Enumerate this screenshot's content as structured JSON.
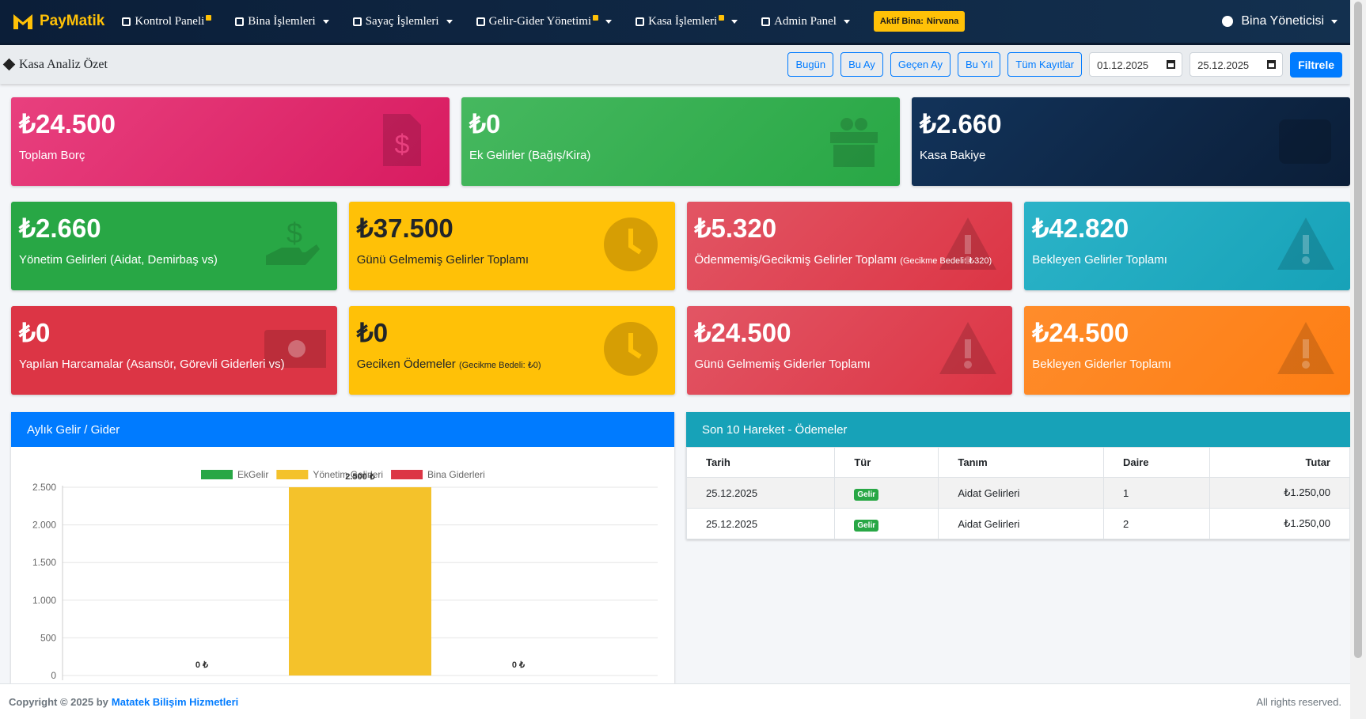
{
  "navbar": {
    "brand": "PayMatik",
    "menu": [
      "Kontrol Paneli",
      "Bina İşlemleri",
      "Sayaç İşlemleri",
      "Gelir-Gider Yönetimi",
      "Kasa İşlemleri",
      "Admin Panel"
    ],
    "active_building_label": "Aktif Bina:",
    "active_building": "Nirvana",
    "user": "Bina Yöneticisi"
  },
  "toolbar": {
    "title": "Kasa Analiz Özet",
    "buttons": [
      "Bugün",
      "Bu Ay",
      "Geçen Ay",
      "Bu Yıl",
      "Tüm Kayıtlar"
    ],
    "date_from": "01.12.2025",
    "date_to": "25.12.2025",
    "filter": "Filtrele"
  },
  "cards": [
    {
      "value": "₺24.500",
      "label": "Toplam Borç"
    },
    {
      "value": "₺0",
      "label": "Ek Gelirler (Bağış/Kira)"
    },
    {
      "value": "₺2.660",
      "label": "Kasa Bakiye"
    },
    {
      "value": "₺2.660",
      "label": "Yönetim Gelirleri (Aidat, Demirbaş vs)"
    },
    {
      "value": "₺37.500",
      "label": "Günü Gelmemiş Gelirler Toplamı"
    },
    {
      "value": "₺5.320",
      "label": "Ödenmemiş/Gecikmiş Gelirler Toplamı",
      "note": "(Gecikme Bedeli: ₺320)"
    },
    {
      "value": "₺42.820",
      "label": "Bekleyen Gelirler Toplamı"
    },
    {
      "value": "₺0",
      "label": "Yapılan Harcamalar (Asansör, Görevli Giderleri vs)"
    },
    {
      "value": "₺0",
      "label": "Geciken Ödemeler",
      "note": "(Gecikme Bedeli: ₺0)"
    },
    {
      "value": "₺24.500",
      "label": "Günü Gelmemiş Giderler Toplamı"
    },
    {
      "value": "₺24.500",
      "label": "Bekleyen Giderler Toplamı"
    }
  ],
  "chart_panel": {
    "title": "Aylık Gelir / Gider"
  },
  "chart_data": {
    "type": "bar",
    "categories": [
      null
    ],
    "series": [
      {
        "name": "EkGelir",
        "color": "#28a745",
        "values": [
          0
        ],
        "value_labels": [
          "0 ₺"
        ]
      },
      {
        "name": "Yönetim Gelirleri",
        "color": "#f4c22b",
        "values": [
          2500
        ],
        "value_labels": [
          "2.500 ₺"
        ]
      },
      {
        "name": "Bina Giderleri",
        "color": "#dc3545",
        "values": [
          0
        ],
        "value_labels": [
          "0 ₺"
        ]
      }
    ],
    "ylim": [
      0,
      2500
    ],
    "yticks": [
      0,
      500,
      {
        "value": 1000,
        "label": "1.000"
      },
      {
        "value": 1500,
        "label": "1.500"
      },
      {
        "value": 2000,
        "label": "2.000"
      },
      {
        "value": 2500,
        "label": "2.500"
      }
    ],
    "grid": true
  },
  "table": {
    "title": "Son 10 Hareket - Ödemeler",
    "columns": [
      "Tarih",
      "Tür",
      "Tanım",
      "Daire",
      "Tutar"
    ],
    "rows": [
      [
        "25.12.2025",
        "Gelir",
        "Aidat Gelirleri",
        "1",
        "₺1.250,00"
      ],
      [
        "25.12.2025",
        "Gelir",
        "Aidat Gelirleri",
        "2",
        "₺1.250,00"
      ]
    ]
  },
  "footer": {
    "copyright": "Copyright © 2025 by",
    "company": "Matatek Bilişim Hizmetleri",
    "rights": "All rights reserved."
  }
}
